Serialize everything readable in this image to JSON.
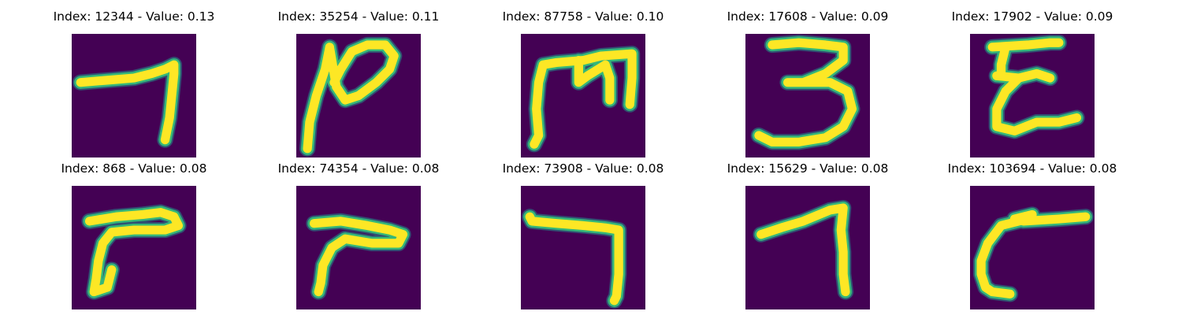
{
  "colors": {
    "background": "#440154",
    "stroke": "#fde725",
    "edge": "#35b779",
    "halo": "#21918c"
  },
  "panels": [
    {
      "title": "Index: 12344 - Value: 0.13",
      "image": "handwritten-stroke-image"
    },
    {
      "title": "Index: 35254 - Value: 0.11",
      "image": "handwritten-stroke-image"
    },
    {
      "title": "Index: 87758 - Value: 0.10",
      "image": "handwritten-stroke-image"
    },
    {
      "title": "Index: 17608 - Value: 0.09",
      "image": "handwritten-stroke-image"
    },
    {
      "title": "Index: 17902 - Value: 0.09",
      "image": "handwritten-stroke-image"
    },
    {
      "title": "Index: 868 - Value: 0.08",
      "image": "handwritten-stroke-image"
    },
    {
      "title": "Index: 74354 - Value: 0.08",
      "image": "handwritten-stroke-image"
    },
    {
      "title": "Index: 73908 - Value: 0.08",
      "image": "handwritten-stroke-image"
    },
    {
      "title": "Index: 15629 - Value: 0.08",
      "image": "handwritten-stroke-image"
    },
    {
      "title": "Index: 103694 - Value: 0.08",
      "image": "handwritten-stroke-image"
    }
  ]
}
